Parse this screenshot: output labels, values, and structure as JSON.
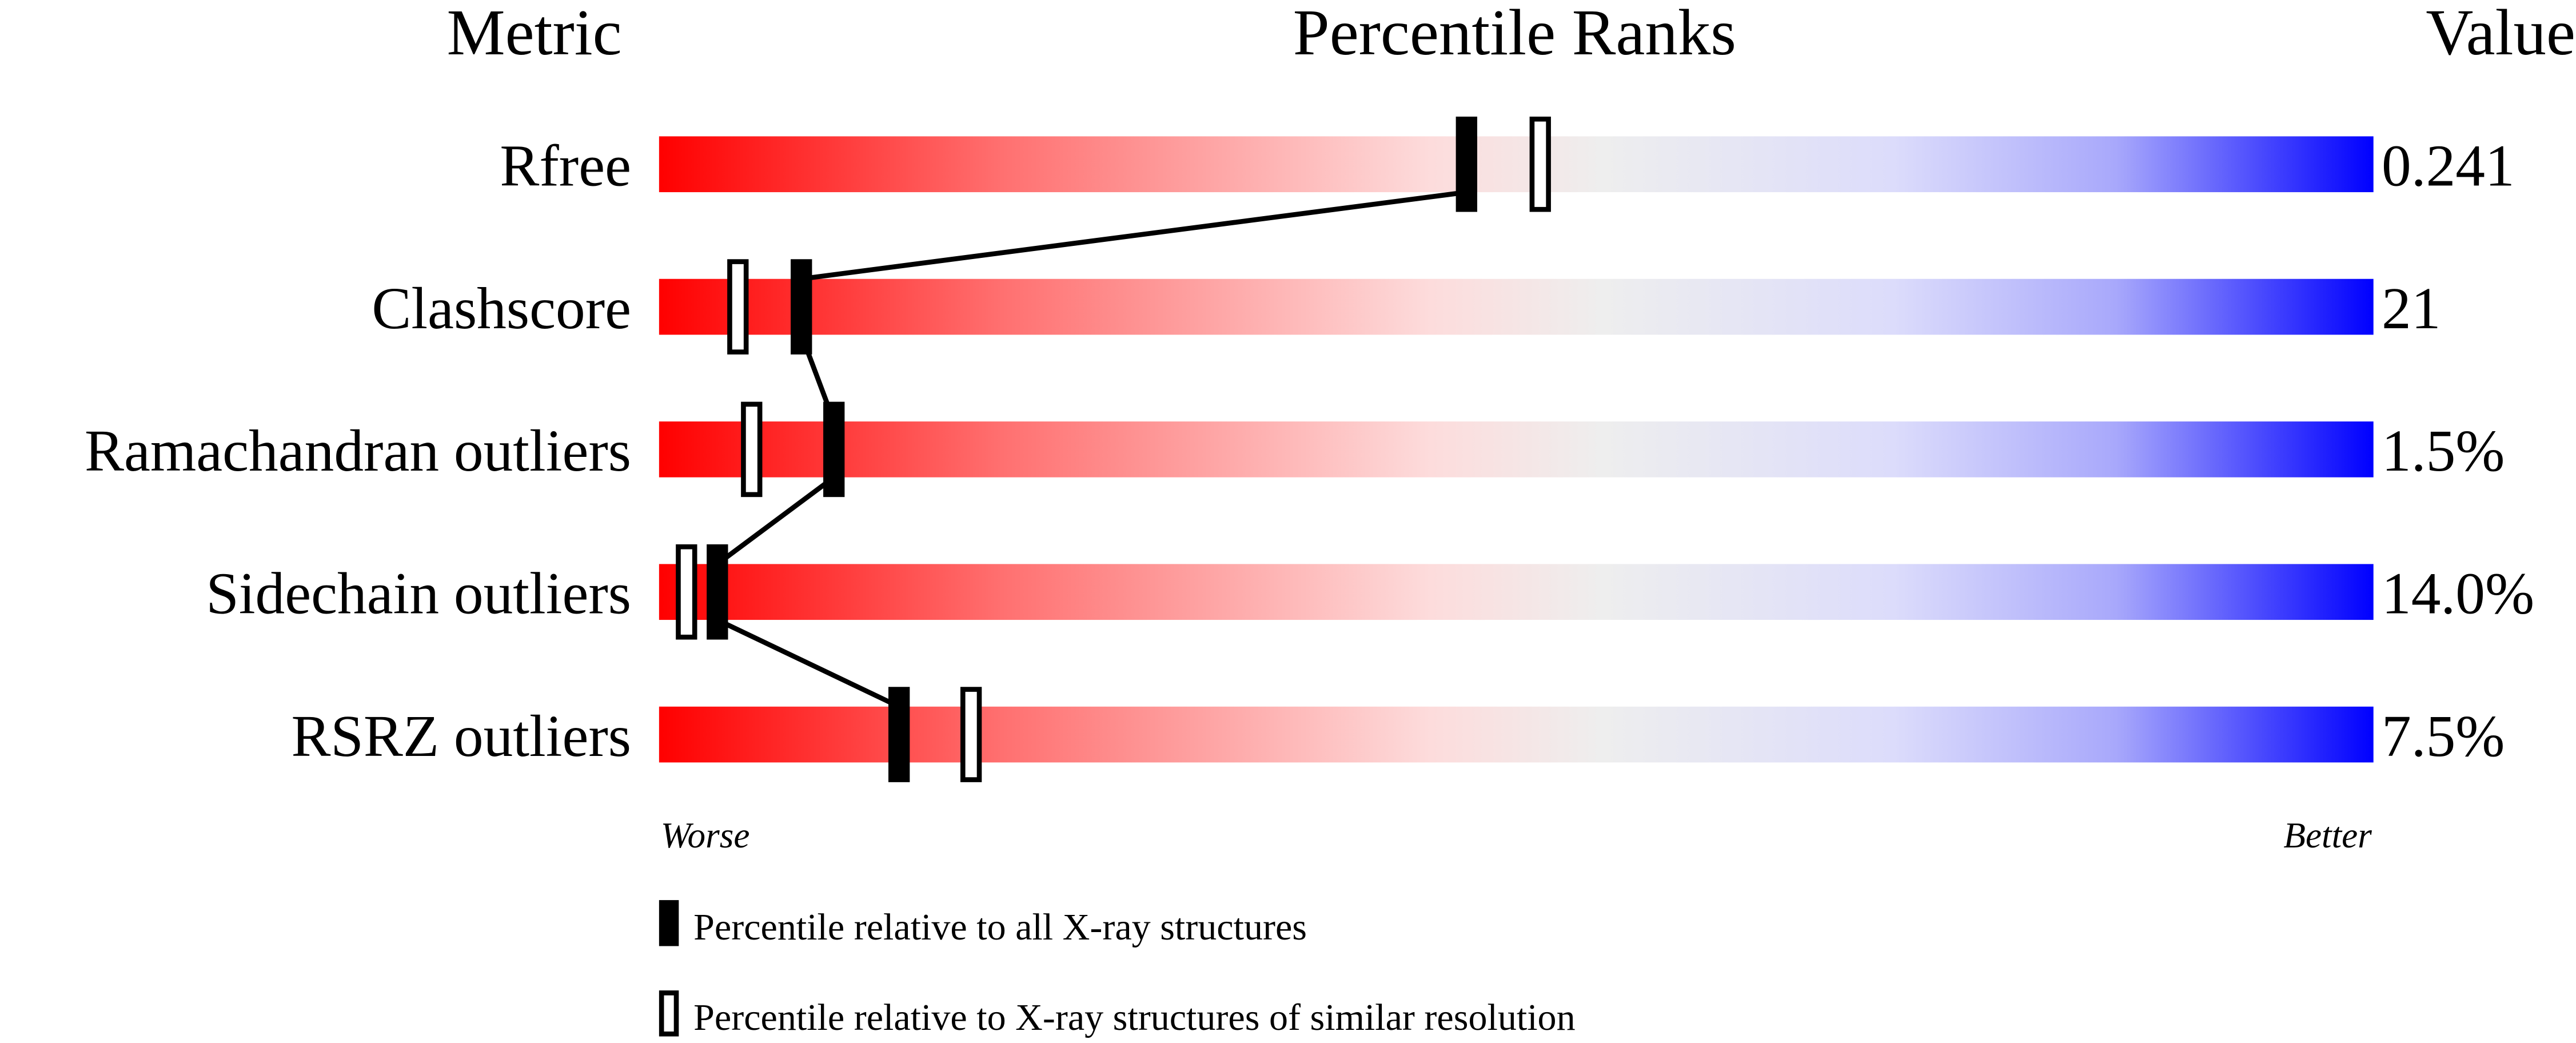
{
  "chart_data": {
    "type": "bar",
    "title": "Percentile Ranks",
    "headers": {
      "metric": "Metric",
      "percentile": "Percentile Ranks",
      "value": "Value"
    },
    "xlim": [
      0,
      100
    ],
    "axis_labels": {
      "left": "Worse",
      "right": "Better"
    },
    "gradient_colors": [
      "#ff0000",
      "#eeeeee",
      "#0000ff"
    ],
    "metrics": [
      {
        "name": "Rfree",
        "value": "0.241",
        "percentile_all": 47.1,
        "percentile_similar": 51.4
      },
      {
        "name": "Clashscore",
        "value": "21",
        "percentile_all": 8.3,
        "percentile_similar": 4.6
      },
      {
        "name": "Ramachandran outliers",
        "value": "1.5%",
        "percentile_all": 10.2,
        "percentile_similar": 5.4
      },
      {
        "name": "Sidechain outliers",
        "value": "14.0%",
        "percentile_all": 3.4,
        "percentile_similar": 1.6
      },
      {
        "name": "RSRZ outliers",
        "value": "7.5%",
        "percentile_all": 14.0,
        "percentile_similar": 18.2
      }
    ],
    "legend": [
      {
        "marker": "filled",
        "label": "Percentile relative to all X-ray structures"
      },
      {
        "marker": "open",
        "label": "Percentile relative to X-ray structures of similar resolution"
      }
    ]
  }
}
